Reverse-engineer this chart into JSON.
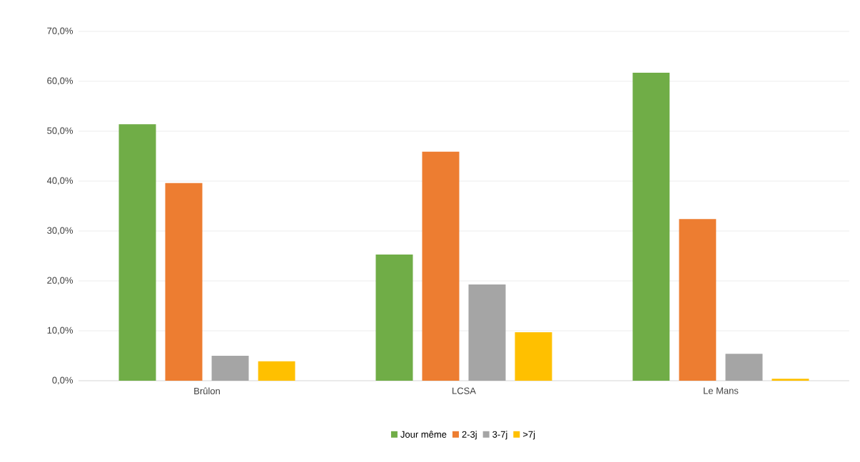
{
  "chart_data": {
    "type": "bar",
    "categories": [
      "Brûlon",
      "LCSA",
      "Le Mans"
    ],
    "series": [
      {
        "name": "Jour même",
        "color": "#70ad47",
        "values": [
          51.4,
          25.3,
          61.7
        ]
      },
      {
        "name": "2-3j",
        "color": "#ed7d31",
        "values": [
          39.6,
          45.9,
          32.4
        ]
      },
      {
        "name": "3-7j",
        "color": "#a5a5a5",
        "values": [
          5.0,
          19.3,
          5.4
        ]
      },
      {
        "name": ">7j",
        "color": "#ffc000",
        "values": [
          3.9,
          9.7,
          0.4
        ]
      }
    ],
    "ylim": [
      0,
      70
    ],
    "yticks": [
      {
        "value": 0,
        "label": "0,0%"
      },
      {
        "value": 10,
        "label": "10,0%"
      },
      {
        "value": 20,
        "label": "20,0%"
      },
      {
        "value": 30,
        "label": "30,0%"
      },
      {
        "value": 40,
        "label": "40,0%"
      },
      {
        "value": 50,
        "label": "50,0%"
      },
      {
        "value": 60,
        "label": "60,0%"
      },
      {
        "value": 70,
        "label": "70,0%"
      }
    ],
    "grid": "y",
    "legend": "bottom"
  }
}
